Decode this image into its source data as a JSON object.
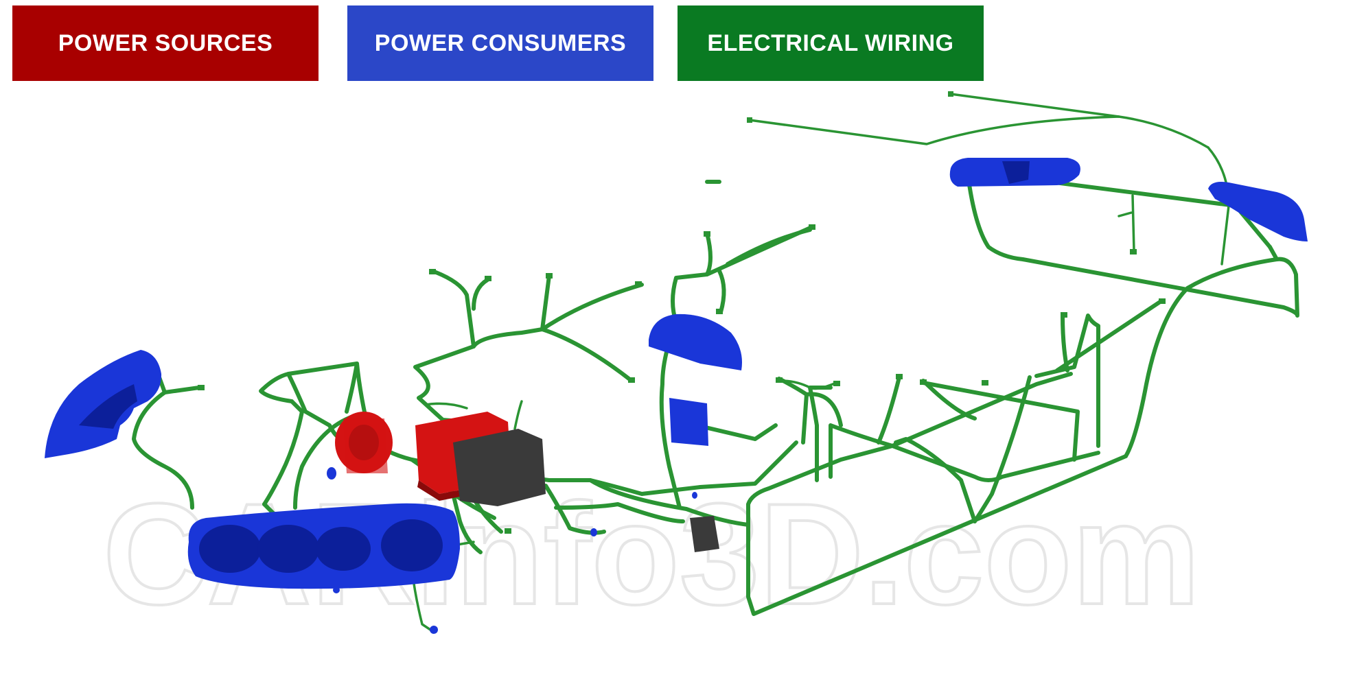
{
  "legend": {
    "sources": {
      "label": "POWER SOURCES",
      "color": "#a80000"
    },
    "consumers": {
      "label": "POWER CONSUMERS",
      "color": "#2b47c8"
    },
    "wiring": {
      "label": "ELECTRICAL WIRING",
      "color": "#0a7a22"
    }
  },
  "watermark": "CARinfo3D.com",
  "colors": {
    "wire": "#2a9433",
    "consumer_fill": "#1a36d8",
    "consumer_dark": "#0c1f9a",
    "source_fill": "#d41313",
    "source_dark": "#8a0a0a",
    "module_fill": "#3a3a3a"
  }
}
